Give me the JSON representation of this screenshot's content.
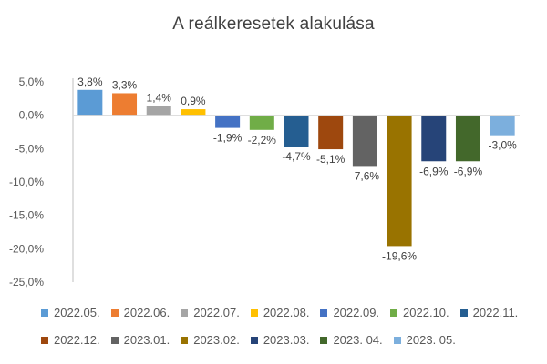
{
  "title": "A reálkeresetek alakulása",
  "chart_data": {
    "type": "bar",
    "title": "A reálkeresetek alakulása",
    "xlabel": "",
    "ylabel": "",
    "ylim": [
      -25,
      5
    ],
    "yticks": [
      5,
      0,
      -5,
      -10,
      -15,
      -20,
      -25
    ],
    "ytick_labels": [
      "5,0%",
      "0,0%",
      "-5,0%",
      "-10,0%",
      "-15,0%",
      "-20,0%",
      "-25,0%"
    ],
    "grid": false,
    "legend_position": "bottom",
    "series": [
      {
        "name": "2022.05.",
        "value": 3.8,
        "label": "3,8%",
        "color": "#5B9BD5"
      },
      {
        "name": "2022.06.",
        "value": 3.3,
        "label": "3,3%",
        "color": "#ED7D31"
      },
      {
        "name": "2022.07.",
        "value": 1.4,
        "label": "1,4%",
        "color": "#A5A5A5"
      },
      {
        "name": "2022.08.",
        "value": 0.9,
        "label": "0,9%",
        "color": "#FFC000"
      },
      {
        "name": "2022.09.",
        "value": -1.9,
        "label": "-1,9%",
        "color": "#4472C4"
      },
      {
        "name": "2022.10.",
        "value": -2.2,
        "label": "-2,2%",
        "color": "#70AD47"
      },
      {
        "name": "2022.11.",
        "value": -4.7,
        "label": "-4,7%",
        "color": "#255E91"
      },
      {
        "name": "2022.12.",
        "value": -5.1,
        "label": "-5,1%",
        "color": "#9E480E"
      },
      {
        "name": "2023.01.",
        "value": -7.6,
        "label": "-7,6%",
        "color": "#636363"
      },
      {
        "name": "2023.02.",
        "value": -19.6,
        "label": "-19,6%",
        "color": "#997300"
      },
      {
        "name": "2023.03.",
        "value": -6.9,
        "label": "-6,9%",
        "color": "#264478"
      },
      {
        "name": "2023. 04.",
        "value": -6.9,
        "label": "-6,9%",
        "color": "#43682B"
      },
      {
        "name": "2023. 05.",
        "value": -3.0,
        "label": "-3,0%",
        "color": "#7CAFDD"
      }
    ]
  }
}
